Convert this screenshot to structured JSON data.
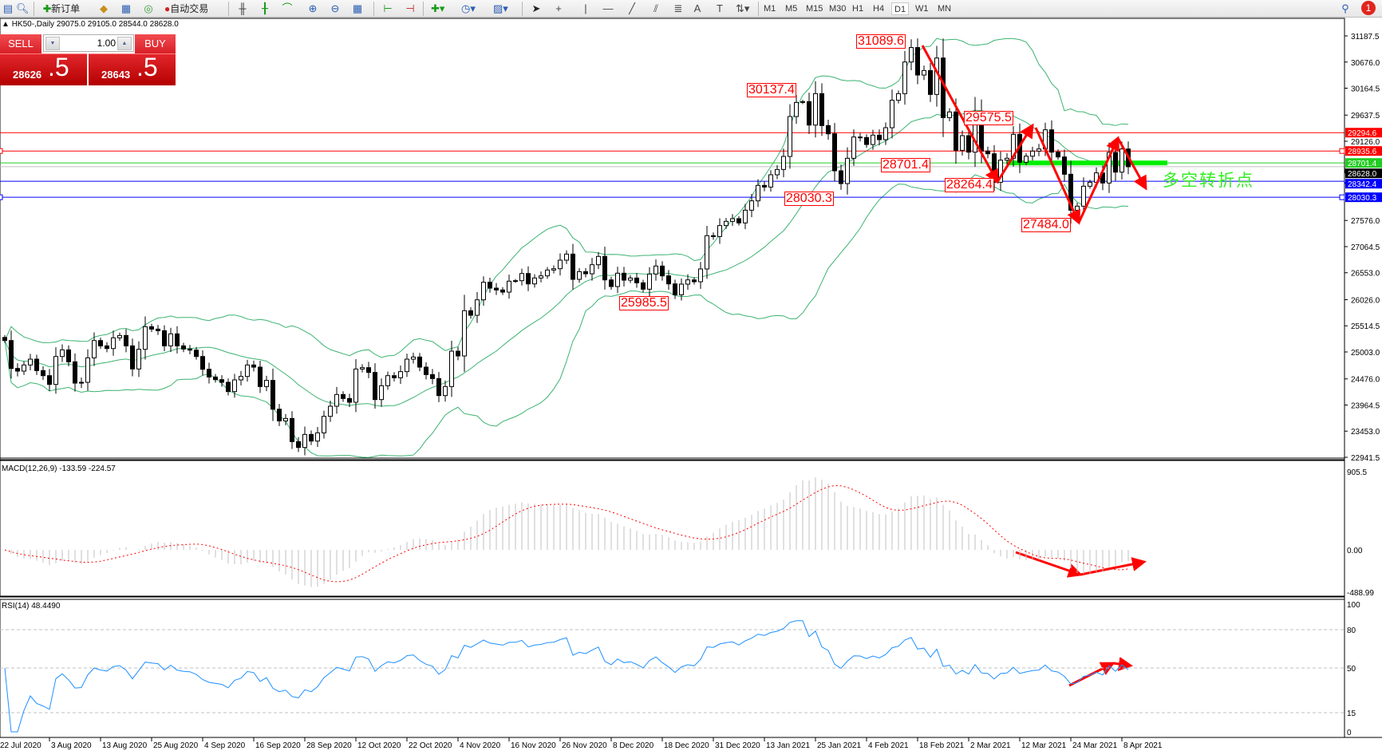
{
  "toolbar": {
    "new_order": "新订单",
    "auto_trading": "自动交易",
    "timeframes": [
      "M1",
      "M5",
      "M15",
      "M30",
      "H1",
      "H4",
      "D1",
      "W1",
      "MN"
    ],
    "active_timeframe": "D1",
    "notification_count": "1",
    "icons": [
      "new-chart-icon",
      "zoom-chart-icon",
      "new-order-icon",
      "market-watch-icon",
      "navigator-icon",
      "signal-icon",
      "auto-trading-icon",
      "bar-chart-icon",
      "candlestick-icon",
      "line-chart-icon",
      "zoom-in-icon",
      "zoom-out-icon",
      "tile-windows-icon",
      "chart-shift-icon",
      "auto-scroll-icon",
      "indicators-icon",
      "periods-icon",
      "templates-icon",
      "cursor-icon",
      "crosshair-icon",
      "vertical-line-icon",
      "horizontal-line-icon",
      "trendline-icon",
      "equidistant-channel-icon",
      "fibonacci-icon",
      "text-icon",
      "text-label-icon",
      "arrows-icon",
      "search-icon",
      "notifications-icon"
    ]
  },
  "chart_header": {
    "symbol": "HK50-,Daily",
    "open": "29075.0",
    "high": "29105.0",
    "low": "28544.0",
    "close": "28628.0"
  },
  "one_click": {
    "sell_label": "SELL",
    "buy_label": "BUY",
    "volume": "1.00",
    "bid_main": "28626",
    "bid_frac": ".5",
    "ask_main": "28643",
    "ask_frac": ".5",
    "color": "#d0161a"
  },
  "chart_data": [
    {
      "type": "candlestick",
      "x_tick_labels": [
        "22 Jul 2020",
        "3 Aug 2020",
        "13 Aug 2020",
        "25 Aug 2020",
        "4 Sep 2020",
        "16 Sep 2020",
        "28 Sep 2020",
        "12 Oct 2020",
        "22 Oct 2020",
        "4 Nov 2020",
        "16 Nov 2020",
        "26 Nov 2020",
        "8 Dec 2020",
        "18 Dec 2020",
        "31 Dec 2020",
        "13 Jan 2021",
        "25 Jan 2021",
        "4 Feb 2021",
        "18 Feb 2021",
        "2 Mar 2021",
        "12 Mar 2021",
        "24 Mar 2021",
        "8 Apr 2021"
      ],
      "y_tick_labels": [
        "31187.5",
        "30676.0",
        "30164.5",
        "29637.5",
        "29126.0",
        "27576.0",
        "27064.5",
        "26553.0",
        "26026.0",
        "25514.5",
        "25003.0",
        "24476.0",
        "23964.5",
        "23453.0",
        "22941.5"
      ],
      "ylim": [
        22941.5,
        31187.5
      ],
      "closes": [
        25226,
        24680,
        24628,
        24748,
        24862,
        24638,
        24539,
        24368,
        24914,
        25044,
        24810,
        24393,
        24409,
        24888,
        25226,
        25122,
        25070,
        25279,
        25325,
        25122,
        24670,
        25055,
        25497,
        25450,
        25419,
        25122,
        25357,
        25122,
        25060,
        25039,
        24914,
        24664,
        24513,
        24461,
        24409,
        24227,
        24456,
        24524,
        24748,
        24706,
        24326,
        24446,
        23883,
        23654,
        23701,
        23248,
        23134,
        23389,
        23259,
        23420,
        23743,
        23941,
        24170,
        24092,
        24019,
        24669,
        24696,
        24602,
        24071,
        24342,
        24539,
        24498,
        24618,
        24862,
        24904,
        24706,
        24560,
        24482,
        24149,
        24326,
        25018,
        24925,
        25810,
        25721,
        26023,
        26367,
        26252,
        26216,
        26174,
        26388,
        26398,
        26538,
        26335,
        26450,
        26492,
        26606,
        26632,
        26799,
        26918,
        26424,
        26575,
        26533,
        26710,
        26872,
        26413,
        26283,
        26544,
        26408,
        26450,
        26356,
        26231,
        26528,
        26684,
        26492,
        26335,
        26122,
        26330,
        26413,
        26377,
        26627,
        27278,
        27262,
        27476,
        27559,
        27611,
        27528,
        27777,
        27960,
        28262,
        28230,
        28470,
        28574,
        28829,
        29610,
        29886,
        29902,
        29443,
        30058,
        29433,
        29272,
        28548,
        28298,
        28793,
        29209,
        29199,
        29063,
        29246,
        29157,
        29391,
        29928,
        30058,
        30677,
        30960,
        30422,
        30510,
        30042,
        30755,
        29589,
        29700,
        28949,
        29235,
        28913,
        29705,
        28933,
        28881,
        28324,
        28756,
        28793,
        29261,
        28715,
        28834,
        28933,
        28975,
        29350,
        28913,
        28819,
        28480,
        27777,
        27856,
        28246,
        28324,
        28507,
        28309,
        28907,
        28522,
        28975,
        28628
      ],
      "levels": [
        {
          "value": "29294.6",
          "color": "#ff0000"
        },
        {
          "value": "28935.6",
          "color": "#ff0000"
        },
        {
          "value": "28701.4",
          "color": "#22cc22"
        },
        {
          "value": "28342.4",
          "color": "#0000ff"
        },
        {
          "value": "28030.3",
          "color": "#0000ff"
        }
      ],
      "current_price": {
        "value": "28628.0",
        "color": "#000000"
      },
      "annotations": [
        "31089.6",
        "30137.4",
        "29575.5",
        "28701.4",
        "28264.4",
        "28030.3",
        "27484.0",
        "25985.5"
      ],
      "note_text": "多空转折点",
      "band_color": "#3cb371",
      "arrow_color": "#ff0000"
    },
    {
      "type": "bar",
      "label": "MACD(12,26,9) -133.59 -224.57",
      "y_tick_labels": [
        "905.5",
        "0.00",
        "-488.99"
      ],
      "ylim": [
        -488.99,
        905.5
      ],
      "histogram_color": "#c0c0c0",
      "signal_color": "#ff0000"
    },
    {
      "type": "line",
      "label": "RSI(14) 48.4490",
      "y_tick_labels": [
        "100",
        "80",
        "50",
        "15",
        "0"
      ],
      "ylim": [
        0,
        100
      ],
      "line_color": "#1e90ff"
    }
  ]
}
